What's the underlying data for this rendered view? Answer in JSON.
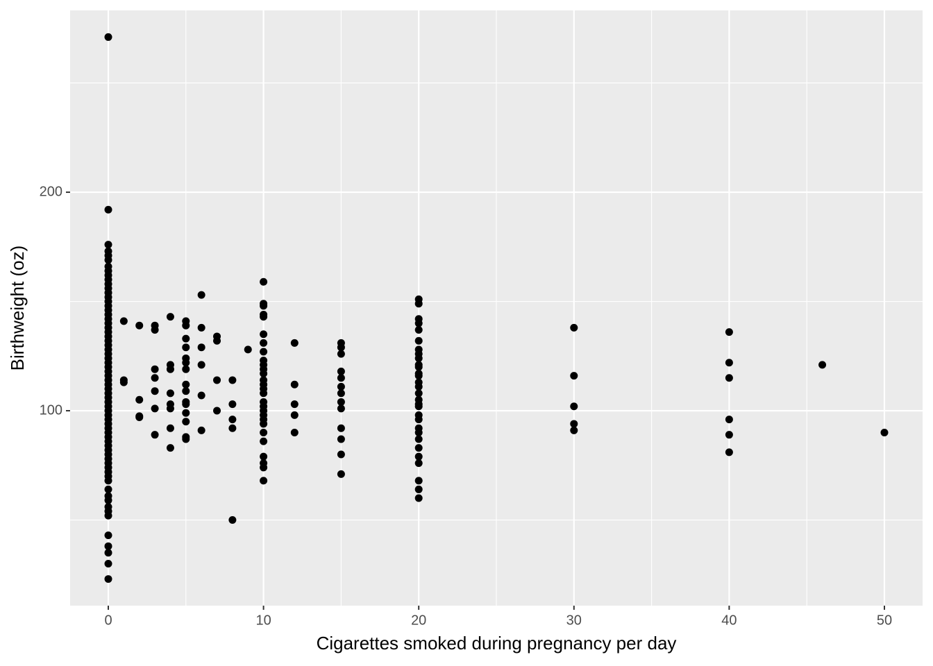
{
  "chart_data": {
    "type": "scatter",
    "x_label": "Cigarettes smoked during pregnancy per day",
    "y_label": "Birthweight (oz)",
    "xlim": [
      -2.46,
      52.46
    ],
    "ylim": [
      10.8,
      283.2
    ],
    "xticks": [
      0,
      10,
      20,
      30,
      40,
      50
    ],
    "yticks": [
      100,
      200
    ],
    "xminor": [
      5,
      15,
      25,
      35,
      45
    ],
    "yminor": [
      50,
      150,
      250
    ],
    "grid": true,
    "color": "#000000",
    "x": [
      0,
      0,
      0,
      0,
      0,
      0,
      0,
      0,
      0,
      0,
      0,
      0,
      0,
      0,
      0,
      0,
      0,
      0,
      0,
      0,
      0,
      0,
      0,
      0,
      0,
      0,
      0,
      0,
      0,
      0,
      0,
      0,
      0,
      0,
      0,
      0,
      0,
      0,
      0,
      0,
      0,
      0,
      0,
      0,
      0,
      0,
      0,
      0,
      0,
      0,
      0,
      0,
      0,
      0,
      0,
      0,
      0,
      0,
      0,
      0,
      0,
      0,
      0,
      0,
      0,
      0,
      0,
      1,
      1,
      1,
      2,
      2,
      2,
      2,
      3,
      3,
      3,
      3,
      3,
      3,
      3,
      4,
      4,
      4,
      4,
      4,
      4,
      4,
      4,
      5,
      5,
      5,
      5,
      5,
      5,
      5,
      5,
      5,
      5,
      5,
      5,
      5,
      5,
      5,
      6,
      6,
      6,
      6,
      6,
      6,
      7,
      7,
      7,
      7,
      8,
      8,
      8,
      8,
      8,
      9,
      10,
      10,
      10,
      10,
      10,
      10,
      10,
      10,
      10,
      10,
      10,
      10,
      10,
      10,
      10,
      10,
      10,
      10,
      10,
      10,
      10,
      10,
      10,
      10,
      10,
      10,
      10,
      10,
      12,
      12,
      12,
      12,
      12,
      15,
      15,
      15,
      15,
      15,
      15,
      15,
      15,
      15,
      15,
      15,
      15,
      15,
      20,
      20,
      20,
      20,
      20,
      20,
      20,
      20,
      20,
      20,
      20,
      20,
      20,
      20,
      20,
      20,
      20,
      20,
      20,
      20,
      20,
      20,
      20,
      20,
      20,
      20,
      20,
      20,
      20,
      20,
      30,
      30,
      30,
      30,
      30,
      40,
      40,
      40,
      40,
      40,
      40,
      46,
      50
    ],
    "values": [
      271,
      192,
      176,
      173,
      171,
      169,
      166,
      164,
      162,
      160,
      158,
      156,
      154,
      152,
      150,
      148,
      146,
      144,
      142,
      140,
      138,
      136,
      134,
      132,
      130,
      128,
      126,
      124,
      122,
      120,
      118,
      116,
      114,
      112,
      110,
      108,
      106,
      104,
      102,
      100,
      98,
      96,
      94,
      92,
      90,
      88,
      86,
      84,
      82,
      80,
      78,
      76,
      74,
      72,
      70,
      68,
      64,
      61,
      59,
      56,
      54,
      52,
      43,
      38,
      35,
      30,
      23,
      141,
      114,
      113,
      139,
      105,
      97.5,
      97,
      139,
      137,
      119,
      115,
      109,
      101,
      89,
      143,
      121,
      119,
      108,
      103,
      101,
      92,
      83,
      141,
      139,
      133,
      129,
      124,
      122,
      119,
      112,
      109,
      104,
      103,
      99,
      95,
      88,
      87,
      153,
      138,
      129,
      121,
      107,
      91,
      134,
      132,
      114,
      100,
      114,
      103,
      96,
      92,
      50,
      128,
      159,
      149,
      148,
      144,
      143,
      135,
      131,
      127,
      123,
      121,
      119,
      117,
      114,
      112,
      110,
      108,
      104,
      102,
      100,
      98,
      96,
      94,
      90,
      86,
      79,
      76,
      74,
      68,
      131,
      112,
      103,
      98,
      90,
      131,
      129,
      126,
      118,
      115,
      111,
      108,
      104,
      101,
      92,
      87,
      80,
      71,
      151,
      149,
      142,
      140,
      137,
      132,
      128,
      126,
      124,
      121,
      120,
      117,
      116,
      113,
      111,
      108,
      105,
      103,
      102,
      98,
      96,
      92,
      90,
      87,
      83,
      79,
      76,
      68,
      64,
      60,
      138,
      116,
      102,
      94,
      91,
      136,
      122,
      115,
      96,
      89,
      81,
      121,
      90
    ]
  }
}
